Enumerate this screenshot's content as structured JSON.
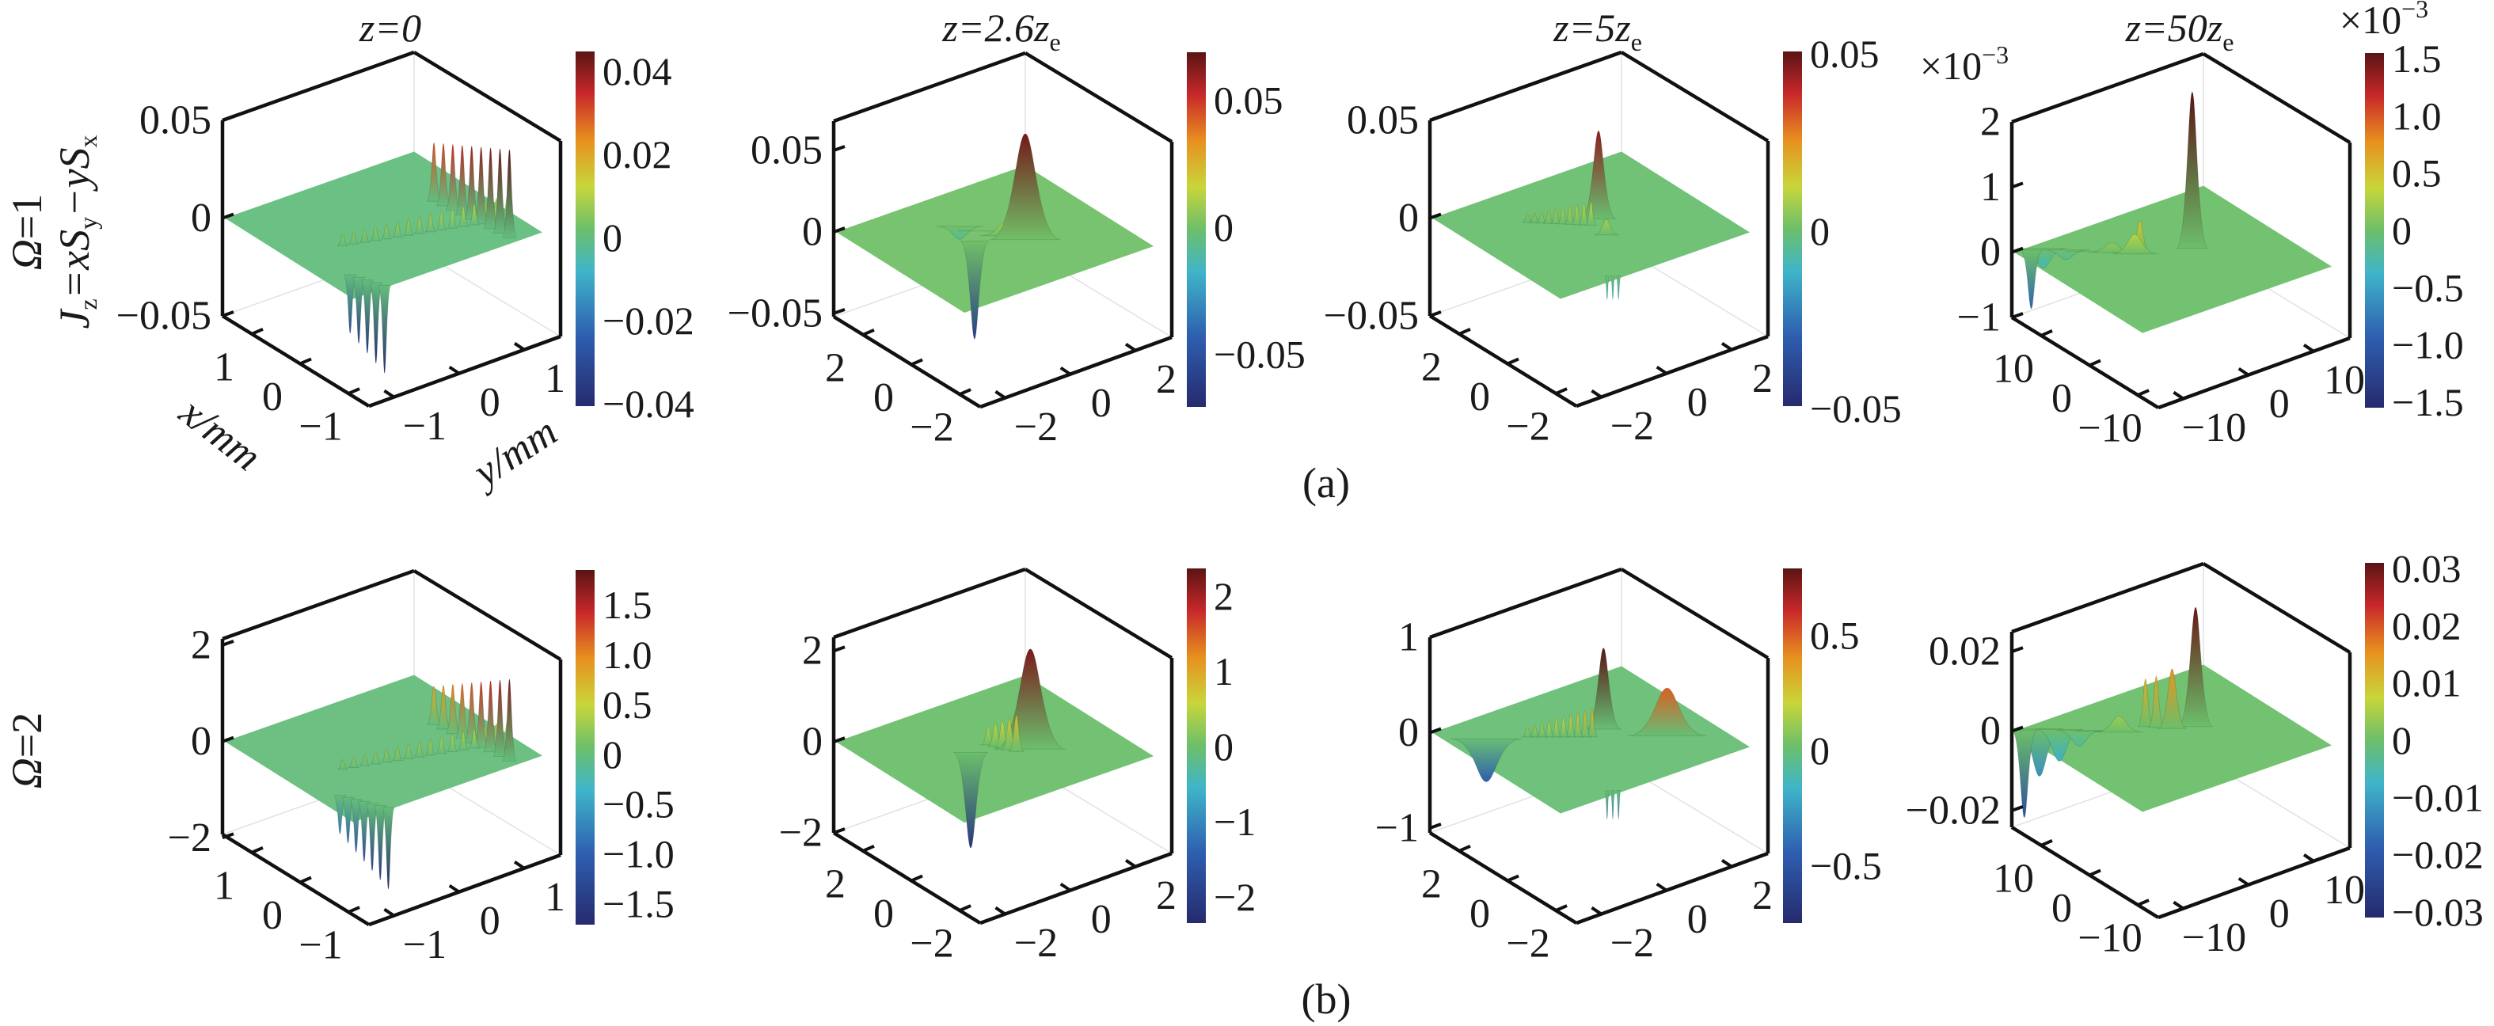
{
  "figure": {
    "row_labels": {
      "a": {
        "omega": "Ω",
        "omega_val": "=1"
      },
      "b": {
        "omega": "Ω",
        "omega_val": "=2"
      },
      "quantity": [
        {
          "t": "J",
          "sub": "z"
        },
        {
          "t": "=xS",
          "sub": "y"
        },
        {
          "t": "−yS",
          "sub": "x"
        }
      ]
    },
    "captions": [
      "(a)",
      "(b)"
    ],
    "axis_labels": {
      "x": "x/mm",
      "y": "y/mm"
    }
  },
  "chart_data": [
    {
      "type": "surface3d",
      "row": "a",
      "omega": 1,
      "title": {
        "t": "z=0",
        "sub": ""
      },
      "zlim": [
        -0.05,
        0.05
      ],
      "zticks": [
        0.05,
        0,
        -0.05
      ],
      "zticklabels": [
        "0.05",
        "0",
        "−0.05"
      ],
      "xticklabels": [
        "1",
        "0",
        "−1"
      ],
      "yticklabels": [
        "−1",
        "0",
        "1"
      ],
      "colorbar": {
        "range": [
          -0.0406,
          0.0448
        ],
        "ticks": [
          0.04,
          0.02,
          0,
          -0.02,
          -0.04
        ],
        "labels": [
          "0.04",
          "0.02",
          "0",
          "−0.02",
          "−0.04"
        ]
      },
      "features": [
        {
          "from": [
            0.55,
            0.25
          ],
          "to": [
            0.8,
            0.95
          ],
          "count": 16,
          "heights": [
            0.006,
            0.012
          ],
          "w": 7
        },
        {
          "from": [
            0.45,
            0.8
          ],
          "to": [
            0.95,
            0.86
          ],
          "count": 9,
          "heights": [
            0.03,
            0.045
          ],
          "w": 9
        },
        {
          "from": [
            0.8,
            0.12
          ],
          "to": [
            0.98,
            0.18
          ],
          "count": 5,
          "heights": [
            -0.03,
            -0.045
          ],
          "w": 8
        }
      ]
    },
    {
      "type": "surface3d",
      "row": "a",
      "omega": 1,
      "title": {
        "t": "z=2.6z",
        "sub": "e"
      },
      "zlim": [
        -0.052,
        0.068
      ],
      "zticks": [
        0.05,
        0,
        -0.05
      ],
      "zticklabels": [
        "0.05",
        "0",
        "−0.05"
      ],
      "xticklabels": [
        "2",
        "0",
        "−2"
      ],
      "yticklabels": [
        "−2",
        "0",
        "2"
      ],
      "colorbar": {
        "range": [
          -0.0707,
          0.0689
        ],
        "ticks": [
          0.05,
          0,
          -0.05
        ],
        "labels": [
          "0.05",
          "0",
          "−0.05"
        ]
      },
      "features": [
        {
          "from": [
            0.3,
            0.45
          ],
          "to": [
            0.5,
            0.55
          ],
          "count": 3,
          "heights": [
            -0.008,
            0.008
          ],
          "w": 30
        },
        {
          "from": [
            0.59,
            0.6
          ],
          "to": [
            0.59,
            0.6
          ],
          "count": 1,
          "heights": [
            0.065,
            0.065
          ],
          "w": 45
        },
        {
          "from": [
            0.46,
            0.42
          ],
          "to": [
            0.46,
            0.42
          ],
          "count": 1,
          "heights": [
            -0.06,
            -0.06
          ],
          "w": 18
        }
      ]
    },
    {
      "type": "surface3d",
      "row": "a",
      "omega": 1,
      "title": {
        "t": "z=5z",
        "sub": "e"
      },
      "zlim": [
        -0.05,
        0.05
      ],
      "zticks": [
        0.05,
        0,
        -0.05
      ],
      "zticklabels": [
        "0.05",
        "0",
        "−0.05"
      ],
      "xticklabels": [
        "2",
        "0",
        "−2"
      ],
      "yticklabels": [
        "−2",
        "0",
        "2"
      ],
      "colorbar": {
        "range": [
          -0.0493,
          0.0507
        ],
        "ticks": [
          0.05,
          0,
          -0.05
        ],
        "labels": [
          "0.05",
          "0",
          "−0.05"
        ]
      },
      "features": [
        {
          "from": [
            0.3,
            0.3
          ],
          "to": [
            0.5,
            0.5
          ],
          "count": 10,
          "heights": [
            0.004,
            0.012
          ],
          "w": 7
        },
        {
          "from": [
            0.47,
            0.56
          ],
          "to": [
            0.47,
            0.56
          ],
          "count": 1,
          "heights": [
            0.045,
            0.045
          ],
          "w": 22
        },
        {
          "from": [
            0.62,
            0.5
          ],
          "to": [
            0.62,
            0.5
          ],
          "count": 1,
          "heights": [
            0.008,
            0.008
          ],
          "w": 16
        },
        {
          "from": [
            0.95,
            0.28
          ],
          "to": [
            0.98,
            0.32
          ],
          "count": 3,
          "heights": [
            -0.012,
            -0.012
          ],
          "w": 3
        }
      ]
    },
    {
      "type": "surface3d",
      "row": "a",
      "omega": 1,
      "title": {
        "t": "z=50z",
        "sub": "e"
      },
      "multiplier": {
        "base": "×10",
        "exp": "−3"
      },
      "zlim": [
        -1,
        2
      ],
      "zticks": [
        2,
        1,
        0,
        -1
      ],
      "zticklabels": [
        "2",
        "1",
        "0",
        "−1"
      ],
      "xticklabels": [
        "10",
        "0",
        "−10"
      ],
      "yticklabels": [
        "−10",
        "0",
        "10"
      ],
      "colorbar": {
        "range": [
          -1.55,
          1.55
        ],
        "ticks": [
          1.5,
          1.0,
          0.5,
          0,
          -0.5,
          -1.0,
          -1.5
        ],
        "labels": [
          "1.5",
          "1.0",
          "0.5",
          "0",
          "−0.5",
          "−1.0",
          "−1.5"
        ]
      },
      "features": [
        {
          "from": [
            0.05,
            0.12
          ],
          "to": [
            0.35,
            0.4
          ],
          "count": 5,
          "heights": [
            -0.3,
            0.3
          ],
          "w": 30
        },
        {
          "from": [
            0.36,
            0.42
          ],
          "to": [
            0.36,
            0.42
          ],
          "count": 1,
          "heights": [
            0.5,
            0.5
          ],
          "w": 14
        },
        {
          "from": [
            0.466,
            0.625
          ],
          "to": [
            0.466,
            0.625
          ],
          "count": 1,
          "heights": [
            2.4,
            2.4
          ],
          "w": 20
        },
        {
          "from": [
            0.03,
            0.07
          ],
          "to": [
            0.03,
            0.07
          ],
          "count": 1,
          "heights": [
            -0.9,
            -0.9
          ],
          "w": 14
        }
      ]
    },
    {
      "type": "surface3d",
      "row": "b",
      "omega": 2,
      "title": {
        "t": "",
        "sub": ""
      },
      "zlim": [
        -1.93,
        2.13
      ],
      "zticks": [
        2,
        0,
        -2
      ],
      "zticklabels": [
        "2",
        "0",
        "−2"
      ],
      "xticklabels": [
        "1",
        "0",
        "−1"
      ],
      "yticklabels": [
        "−1",
        "0",
        "1"
      ],
      "colorbar": {
        "range": [
          -1.71,
          1.85
        ],
        "ticks": [
          1.5,
          1.0,
          0.5,
          0,
          -0.5,
          -1.0,
          -1.5
        ],
        "labels": [
          "1.5",
          "1.0",
          "0.5",
          "0",
          "−0.5",
          "−1.0",
          "−1.5"
        ]
      },
      "features": [
        {
          "from": [
            0.55,
            0.25
          ],
          "to": [
            0.8,
            0.95
          ],
          "count": 16,
          "heights": [
            0.2,
            0.45
          ],
          "w": 7
        },
        {
          "from": [
            0.45,
            0.8
          ],
          "to": [
            0.95,
            0.86
          ],
          "count": 9,
          "heights": [
            0.8,
            1.7
          ],
          "w": 9
        },
        {
          "from": [
            0.75,
            0.1
          ],
          "to": [
            0.98,
            0.2
          ],
          "count": 7,
          "heights": [
            -0.8,
            -1.7
          ],
          "w": 8
        }
      ]
    },
    {
      "type": "surface3d",
      "row": "b",
      "omega": 2,
      "title": {
        "t": "",
        "sub": ""
      },
      "zlim": [
        -2,
        2.3
      ],
      "zticks": [
        2,
        0,
        -2
      ],
      "zticklabels": [
        "2",
        "0",
        "−2"
      ],
      "xticklabels": [
        "2",
        "0",
        "−2"
      ],
      "yticklabels": [
        "−2",
        "0",
        "2"
      ],
      "colorbar": {
        "range": [
          -2.35,
          2.37
        ],
        "ticks": [
          2,
          1,
          0,
          -1,
          -2
        ],
        "labels": [
          "2",
          "1",
          "0",
          "−1",
          "−2"
        ]
      },
      "features": [
        {
          "from": [
            0.45,
            0.5
          ],
          "to": [
            0.58,
            0.56
          ],
          "count": 5,
          "heights": [
            0.4,
            0.8
          ],
          "w": 10
        },
        {
          "from": [
            0.6,
            0.62
          ],
          "to": [
            0.6,
            0.62
          ],
          "count": 1,
          "heights": [
            2.2,
            2.2
          ],
          "w": 45
        },
        {
          "from": [
            0.46,
            0.4
          ],
          "to": [
            0.46,
            0.4
          ],
          "count": 1,
          "heights": [
            -2.1,
            -2.1
          ],
          "w": 22
        }
      ]
    },
    {
      "type": "surface3d",
      "row": "b",
      "omega": 2,
      "title": {
        "t": "",
        "sub": ""
      },
      "zlim": [
        -1.05,
        1
      ],
      "zticks": [
        1,
        0,
        -1
      ],
      "zticklabels": [
        "1",
        "0",
        "−1"
      ],
      "xticklabels": [
        "2",
        "0",
        "−2"
      ],
      "yticklabels": [
        "−2",
        "0",
        "2"
      ],
      "colorbar": {
        "range": [
          -0.75,
          0.79
        ],
        "ticks": [
          0.5,
          0,
          -0.5
        ],
        "labels": [
          "0.5",
          "0",
          "−0.5"
        ]
      },
      "features": [
        {
          "from": [
            0.3,
            0.3
          ],
          "to": [
            0.48,
            0.52
          ],
          "count": 10,
          "heights": [
            0.1,
            0.3
          ],
          "w": 7
        },
        {
          "from": [
            0.2,
            0.15
          ],
          "to": [
            0.2,
            0.15
          ],
          "count": 1,
          "heights": [
            -0.45,
            -0.45
          ],
          "w": 45
        },
        {
          "from": [
            0.45,
            0.6
          ],
          "to": [
            0.45,
            0.6
          ],
          "count": 1,
          "heights": [
            0.85,
            0.85
          ],
          "w": 22
        },
        {
          "from": [
            0.68,
            0.78
          ],
          "to": [
            0.68,
            0.78
          ],
          "count": 1,
          "heights": [
            0.5,
            0.5
          ],
          "w": 50
        },
        {
          "from": [
            0.95,
            0.28
          ],
          "to": [
            0.98,
            0.32
          ],
          "count": 3,
          "heights": [
            -0.3,
            -0.3
          ],
          "w": 3
        }
      ]
    },
    {
      "type": "surface3d",
      "row": "b",
      "omega": 2,
      "title": {
        "t": "",
        "sub": ""
      },
      "zlim": [
        -0.0242,
        0.025
      ],
      "zticks": [
        0.02,
        0,
        -0.02
      ],
      "zticklabels": [
        "0.02",
        "0",
        "−0.02"
      ],
      "xticklabels": [
        "10",
        "0",
        "−10"
      ],
      "yticklabels": [
        "−10",
        "0",
        "10"
      ],
      "colorbar": {
        "range": [
          -0.031,
          0.031
        ],
        "ticks": [
          0.03,
          0.02,
          0.01,
          0,
          -0.01,
          -0.02,
          -0.03
        ],
        "labels": [
          "0.03",
          "0.02",
          "0.01",
          "0",
          "−0.01",
          "−0.02",
          "−0.03"
        ]
      },
      "features": [
        {
          "from": [
            0.05,
            0.1
          ],
          "to": [
            0.3,
            0.35
          ],
          "count": 5,
          "heights": [
            -0.012,
            0.004
          ],
          "w": 30
        },
        {
          "from": [
            0.33,
            0.47
          ],
          "to": [
            0.37,
            0.5
          ],
          "count": 2,
          "heights": [
            0.012,
            0.013
          ],
          "w": 10
        },
        {
          "from": [
            0.42,
            0.55
          ],
          "to": [
            0.42,
            0.55
          ],
          "count": 1,
          "heights": [
            0.015,
            0.015
          ],
          "w": 18
        },
        {
          "from": [
            0.47,
            0.64
          ],
          "to": [
            0.47,
            0.64
          ],
          "count": 1,
          "heights": [
            0.03,
            0.03
          ],
          "w": 22
        },
        {
          "from": [
            0.02,
            0.04
          ],
          "to": [
            0.02,
            0.04
          ],
          "count": 1,
          "heights": [
            -0.022,
            -0.022
          ],
          "w": 16
        }
      ]
    }
  ]
}
